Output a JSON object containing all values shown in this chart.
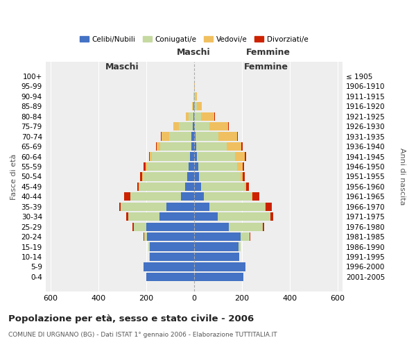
{
  "age_groups": [
    "100+",
    "95-99",
    "90-94",
    "85-89",
    "80-84",
    "75-79",
    "70-74",
    "65-69",
    "60-64",
    "55-59",
    "50-54",
    "45-49",
    "40-44",
    "35-39",
    "30-34",
    "25-29",
    "20-24",
    "15-19",
    "10-14",
    "5-9",
    "0-4"
  ],
  "birth_years": [
    "≤ 1905",
    "1906-1910",
    "1911-1915",
    "1916-1920",
    "1921-1925",
    "1926-1930",
    "1931-1935",
    "1936-1940",
    "1941-1945",
    "1946-1950",
    "1951-1955",
    "1956-1960",
    "1961-1965",
    "1966-1970",
    "1971-1975",
    "1976-1980",
    "1981-1985",
    "1986-1990",
    "1991-1995",
    "1996-2000",
    "2001-2005"
  ],
  "colors": {
    "celibi": "#4472c4",
    "coniugati": "#c5d9a0",
    "vedovi": "#f0c060",
    "divorziati": "#cc2200"
  },
  "males": {
    "celibi": [
      0,
      0,
      0,
      1,
      2,
      4,
      10,
      12,
      18,
      22,
      28,
      38,
      55,
      115,
      145,
      200,
      195,
      185,
      185,
      210,
      200
    ],
    "coniugati": [
      0,
      0,
      2,
      5,
      20,
      58,
      95,
      130,
      158,
      175,
      185,
      190,
      210,
      190,
      130,
      52,
      14,
      5,
      2,
      0,
      0
    ],
    "vedovi": [
      0,
      0,
      1,
      3,
      12,
      25,
      30,
      15,
      8,
      5,
      3,
      2,
      1,
      0,
      0,
      0,
      0,
      0,
      0,
      0,
      0
    ],
    "divorziati": [
      0,
      0,
      0,
      0,
      0,
      0,
      2,
      2,
      3,
      8,
      8,
      8,
      25,
      8,
      8,
      5,
      3,
      0,
      0,
      0,
      0
    ]
  },
  "females": {
    "nubili": [
      0,
      0,
      0,
      1,
      2,
      3,
      5,
      8,
      12,
      18,
      22,
      30,
      40,
      65,
      100,
      145,
      195,
      185,
      188,
      215,
      205
    ],
    "coniugate": [
      0,
      2,
      5,
      10,
      28,
      62,
      98,
      128,
      158,
      162,
      172,
      182,
      202,
      232,
      218,
      142,
      38,
      10,
      2,
      0,
      0
    ],
    "vedove": [
      0,
      2,
      8,
      20,
      55,
      78,
      78,
      62,
      42,
      22,
      10,
      6,
      3,
      1,
      0,
      0,
      0,
      0,
      0,
      0,
      0
    ],
    "divorziate": [
      0,
      0,
      0,
      0,
      1,
      2,
      2,
      5,
      5,
      8,
      8,
      12,
      28,
      28,
      12,
      5,
      3,
      0,
      0,
      0,
      0
    ]
  },
  "xlim": [
    -620,
    620
  ],
  "xticks": [
    -600,
    -400,
    -200,
    0,
    200,
    400,
    600
  ],
  "xticklabels": [
    "600",
    "400",
    "200",
    "0",
    "200",
    "400",
    "600"
  ],
  "title": "Popolazione per età, sesso e stato civile - 2006",
  "subtitle": "COMUNE DI URGNANO (BG) - Dati ISTAT 1° gennaio 2006 - Elaborazione TUTTITALIA.IT",
  "ylabel_left": "Fasce di età",
  "ylabel_right": "Anni di nascita",
  "maschi_label": "Maschi",
  "femmine_label": "Femmine",
  "legend_labels": [
    "Celibi/Nubili",
    "Coniugati/e",
    "Vedovi/e",
    "Divorziati/e"
  ],
  "background_color": "#eeeeee",
  "bar_height": 0.85
}
